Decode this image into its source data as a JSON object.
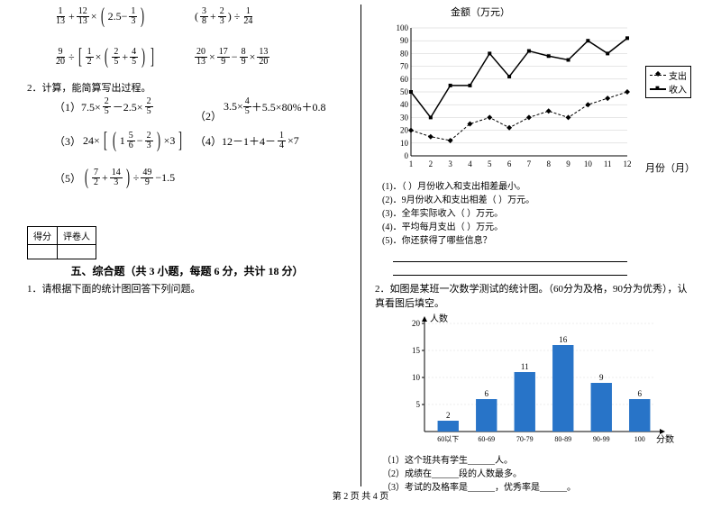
{
  "footer": "第 2 页  共 4 页",
  "left": {
    "q2_label": "2．计算，能简算写出过程。",
    "items": {
      "i1": "（1）7.5×",
      "i1b": "－2.5×",
      "i2": "（2）",
      "i2a": "3.5×",
      "i2b": "＋5.5×80%＋0.8",
      "i3": "（3）",
      "i4": "（4）12－1＋4－",
      "i4b": "×7",
      "i5": "（5）"
    },
    "score_cells": [
      "得分",
      "评卷人"
    ],
    "section5": "五、综合题（共 3 小题，每题 6 分，共计 18 分）",
    "q1": "1．请根据下面的统计图回答下列问题。"
  },
  "right": {
    "chart1": {
      "y_title": "金额（万元）",
      "x_title": "月份（月）",
      "y_ticks": [
        0,
        10,
        20,
        30,
        40,
        50,
        60,
        70,
        80,
        90,
        100
      ],
      "x_ticks": [
        1,
        2,
        3,
        4,
        5,
        6,
        7,
        8,
        9,
        10,
        11,
        12
      ],
      "legend": [
        "支出",
        "收入"
      ],
      "income": [
        50,
        30,
        55,
        55,
        80,
        62,
        82,
        78,
        75,
        90,
        80,
        92
      ],
      "expense": [
        20,
        15,
        12,
        25,
        30,
        22,
        30,
        35,
        30,
        40,
        45,
        50
      ],
      "color_line": "#000000"
    },
    "sub1": [
      "(1)．（  ）月份收入和支出相差最小。",
      "(2)．9月份收入和支出相差（  ）万元。",
      "(3)．全年实际收入（  ）万元。",
      "(4)．平均每月支出（  ）万元。",
      "(5)．你还获得了哪些信息？"
    ],
    "q2": "2．如图是某班一次数学测试的统计图。（60分为及格，90分为优秀），认真看图后填空。",
    "chart2": {
      "y_label": "人数",
      "x_label": "分数",
      "y_ticks": [
        5,
        10,
        15,
        20
      ],
      "categories": [
        "60以下",
        "60-69",
        "70-79",
        "80-89",
        "90-99",
        "100"
      ],
      "values": [
        2,
        6,
        11,
        16,
        9,
        6
      ],
      "bar_color": "#2874c8"
    },
    "sub2": [
      "（1）这个班共有学生______人。",
      "（2）成绩在______段的人数最多。",
      "（3）考试的及格率是______，优秀率是______。"
    ]
  }
}
